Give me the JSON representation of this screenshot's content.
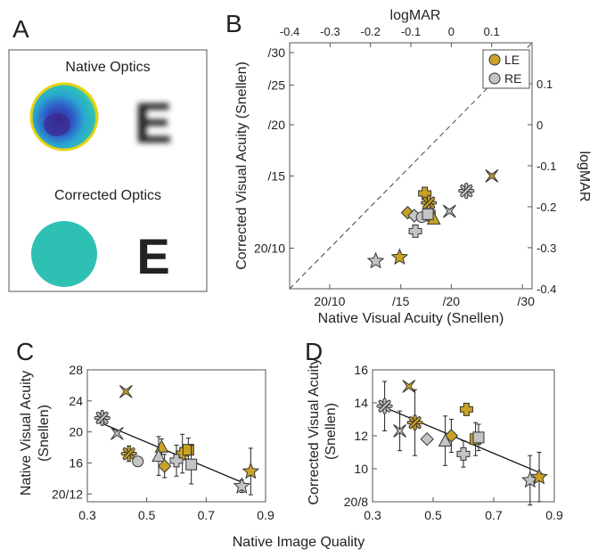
{
  "panel_letters": {
    "a": "A",
    "b": "B",
    "c": "C",
    "d": "D"
  },
  "panel_a": {
    "native_title": "Native Optics",
    "corrected_title": "Corrected Optics",
    "letter": "E"
  },
  "colors": {
    "le": "#c9a227",
    "re": "#c4c4c4",
    "edge": "#333333",
    "wave_map": "#2fc0b4",
    "wave_dark": "#3a2a8f",
    "wave_edge": "#f0dc10"
  },
  "chart_data": [
    {
      "panel": "B",
      "type": "scatter",
      "xlabel": "Native Visual Acuity (Snellen)",
      "ylabel": "Corrected Visual Acuity (Snellen)",
      "top_label": "logMAR",
      "right_label": "logMAR",
      "x_ticks": [
        "20/10",
        "/15",
        "/20",
        "/30"
      ],
      "y_ticks": [
        "20/10",
        "/15",
        "/20",
        "/25",
        "/30"
      ],
      "logmar_top_ticks": [
        "-0.4",
        "-0.3",
        "-0.2",
        "-0.1",
        "0",
        "0.1"
      ],
      "logmar_right_ticks": [
        "0.1",
        "0",
        "-0.1",
        "-0.2",
        "-0.3",
        "-0.4"
      ],
      "legend": [
        "LE",
        "RE"
      ],
      "legend_position": "top-right",
      "diagonal": "unity line (dashed)",
      "points": [
        {
          "eye": "LE",
          "marker": "X",
          "x": 25.2,
          "y": 15
        },
        {
          "eye": "RE",
          "marker": "asterisk",
          "x": 21.8,
          "y": 13.8
        },
        {
          "eye": "RE",
          "marker": "X",
          "x": 19.8,
          "y": 12.3
        },
        {
          "eye": "LE",
          "marker": "plus",
          "x": 17.2,
          "y": 13.6
        },
        {
          "eye": "LE",
          "marker": "asterisk",
          "x": 17.6,
          "y": 12.9
        },
        {
          "eye": "LE",
          "marker": "square",
          "x": 17.7,
          "y": 12.0
        },
        {
          "eye": "LE",
          "marker": "triangle",
          "x": 18.1,
          "y": 11.8
        },
        {
          "eye": "LE",
          "marker": "diamond",
          "x": 15.6,
          "y": 12.2
        },
        {
          "eye": "RE",
          "marker": "diamond",
          "x": 16.2,
          "y": 12.0
        },
        {
          "eye": "RE",
          "marker": "circle",
          "x": 16.9,
          "y": 11.9
        },
        {
          "eye": "RE",
          "marker": "square",
          "x": 17.5,
          "y": 12.1
        },
        {
          "eye": "RE",
          "marker": "plus",
          "x": 16.3,
          "y": 11.0
        },
        {
          "eye": "LE",
          "marker": "star",
          "x": 14.9,
          "y": 9.5
        },
        {
          "eye": "RE",
          "marker": "star",
          "x": 13.0,
          "y": 9.3
        }
      ]
    },
    {
      "panel": "C",
      "type": "scatter",
      "xlabel": "Native Image Quality",
      "ylabel": "Native Visual Acuity (Snellen)",
      "x_ticks": [
        "0.3",
        "0.5",
        "0.7",
        "0.9"
      ],
      "y_ticks": [
        "20/12",
        "16",
        "20",
        "24",
        "28"
      ],
      "fit_line": {
        "x": [
          0.33,
          0.84
        ],
        "y": [
          21.4,
          13.2
        ]
      },
      "points": [
        {
          "eye": "LE",
          "marker": "X",
          "x": 0.43,
          "y": 25.2,
          "err": 0
        },
        {
          "eye": "RE",
          "marker": "asterisk",
          "x": 0.35,
          "y": 21.8,
          "err": 0.6
        },
        {
          "eye": "RE",
          "marker": "X",
          "x": 0.4,
          "y": 19.8,
          "err": 0
        },
        {
          "eye": "LE",
          "marker": "asterisk",
          "x": 0.44,
          "y": 17.2,
          "err": 1.0
        },
        {
          "eye": "RE",
          "marker": "circle",
          "x": 0.47,
          "y": 16.2,
          "err": 0
        },
        {
          "eye": "LE",
          "marker": "triangle",
          "x": 0.55,
          "y": 18.1,
          "err": 1.0
        },
        {
          "eye": "RE",
          "marker": "triangle",
          "x": 0.54,
          "y": 16.9,
          "err": 2.5
        },
        {
          "eye": "LE",
          "marker": "diamond",
          "x": 0.56,
          "y": 15.6,
          "err": 1.5
        },
        {
          "eye": "LE",
          "marker": "plus",
          "x": 0.62,
          "y": 17.2,
          "err": 2.5
        },
        {
          "eye": "LE",
          "marker": "square",
          "x": 0.64,
          "y": 17.7,
          "err": 1.5
        },
        {
          "eye": "RE",
          "marker": "plus",
          "x": 0.6,
          "y": 16.3,
          "err": 2.0
        },
        {
          "eye": "RE",
          "marker": "square",
          "x": 0.65,
          "y": 15.8,
          "err": 2.5
        },
        {
          "eye": "RE",
          "marker": "star",
          "x": 0.82,
          "y": 13.0,
          "err": 0.8
        },
        {
          "eye": "LE",
          "marker": "star",
          "x": 0.85,
          "y": 14.9,
          "err": 3.0
        }
      ]
    },
    {
      "panel": "D",
      "type": "scatter",
      "xlabel": "",
      "ylabel": "Corrected Visual Acuity (Snellen)",
      "x_ticks": [
        "0.3",
        "0.5",
        "0.7",
        "0.9"
      ],
      "y_ticks": [
        "20/8",
        "10",
        "12",
        "14",
        "16"
      ],
      "fit_line": {
        "x": [
          0.33,
          0.86
        ],
        "y": [
          13.8,
          9.7
        ]
      },
      "points": [
        {
          "eye": "LE",
          "marker": "X",
          "x": 0.42,
          "y": 15.0,
          "err": 0
        },
        {
          "eye": "RE",
          "marker": "asterisk",
          "x": 0.34,
          "y": 13.8,
          "err": 1.5
        },
        {
          "eye": "RE",
          "marker": "X",
          "x": 0.39,
          "y": 12.3,
          "err": 1.2
        },
        {
          "eye": "LE",
          "marker": "asterisk",
          "x": 0.44,
          "y": 12.8,
          "err": 2.0
        },
        {
          "eye": "RE",
          "marker": "diamond",
          "x": 0.48,
          "y": 11.8,
          "err": 0
        },
        {
          "eye": "LE",
          "marker": "diamond",
          "x": 0.56,
          "y": 12.0,
          "err": 1.0
        },
        {
          "eye": "RE",
          "marker": "triangle",
          "x": 0.54,
          "y": 11.7,
          "err": 1.5
        },
        {
          "eye": "LE",
          "marker": "plus",
          "x": 0.61,
          "y": 13.6,
          "err": 0
        },
        {
          "eye": "RE",
          "marker": "plus",
          "x": 0.6,
          "y": 10.9,
          "err": 0.8
        },
        {
          "eye": "LE",
          "marker": "square",
          "x": 0.64,
          "y": 11.8,
          "err": 1.0
        },
        {
          "eye": "RE",
          "marker": "square",
          "x": 0.65,
          "y": 11.9,
          "err": 0.8
        },
        {
          "eye": "RE",
          "marker": "star",
          "x": 0.82,
          "y": 9.3,
          "err": 1.5
        },
        {
          "eye": "LE",
          "marker": "star",
          "x": 0.85,
          "y": 9.5,
          "err": 1.5
        }
      ]
    }
  ]
}
